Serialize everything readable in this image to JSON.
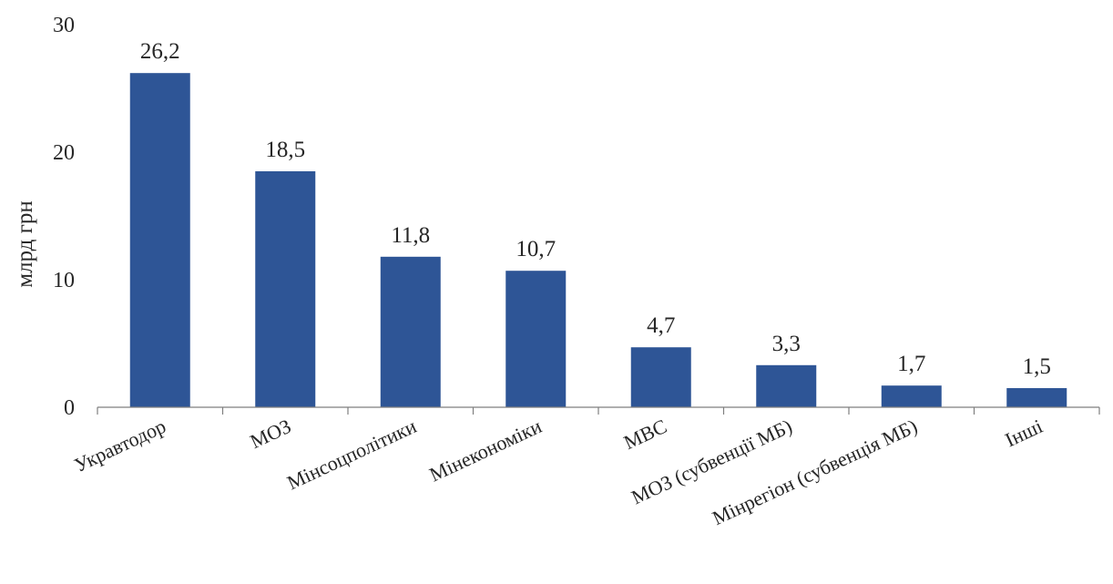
{
  "chart_data": {
    "type": "bar",
    "title": "",
    "xlabel": "",
    "ylabel": "млрд грн",
    "ylim": [
      0,
      30
    ],
    "yticks": [
      "0",
      "10",
      "20",
      "30"
    ],
    "grid": false,
    "bar_color": "#2e5596",
    "categories": [
      "Укравтодор",
      "МОЗ",
      "Мінсоцполітики",
      "Мінекономіки",
      "МВС",
      "МОЗ (субвенції МБ)",
      "Мінрегіон (субвенція МБ)",
      "Інші"
    ],
    "values": [
      26.2,
      18.5,
      11.8,
      10.7,
      4.7,
      3.3,
      1.7,
      1.5
    ],
    "value_labels": [
      "26,2",
      "18,5",
      "11,8",
      "10,7",
      "4,7",
      "3,3",
      "1,7",
      "1,5"
    ]
  }
}
